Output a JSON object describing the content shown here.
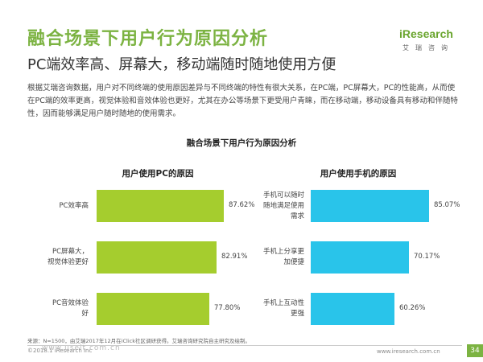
{
  "header": {
    "title": "融合场景下用户行为原因分析",
    "subtitle": "PC端效率高、屏幕大，移动端随时随地使用方便"
  },
  "logo": {
    "main": "iResearch",
    "sub": "艾瑞咨询"
  },
  "intro": "根据艾瑞咨询数据，用户对不同终端的使用原因差异与不同终端的特性有很大关系，在PC端，PC屏幕大，PC的性能高，从而使在PC端的效率更高，视觉体验和音效体验也更好，尤其在办公等场景下更受用户青睐，而在移动端，移动设备具有移动和伴随特性，因而能够满足用户随时随地的使用需求。",
  "chart_data": {
    "type": "bar",
    "title": "融合场景下用户行为原因分析",
    "orientation": "horizontal",
    "panels": [
      {
        "title": "用户使用PC的原因",
        "categories": [
          "PC效率高",
          "PC屏幕大，视觉体验更好",
          "PC音效体验好"
        ],
        "category_lines": [
          [
            "PC效率高"
          ],
          [
            "PC屏幕大，",
            "视觉体验更好"
          ],
          [
            "PC音效体验",
            "好"
          ]
        ],
        "values": [
          87.62,
          82.91,
          77.8
        ],
        "labels": [
          "87.62%",
          "82.91%",
          "77.80%"
        ],
        "color": "#a5cd2e"
      },
      {
        "title": "用户使用手机的原因",
        "categories": [
          "手机可以随时随地满足使用需求",
          "手机上分享更加便捷",
          "手机上互动性更强"
        ],
        "category_lines": [
          [
            "手机可以随时",
            "随地满足使用",
            "需求"
          ],
          [
            "手机上分享更",
            "加便捷"
          ],
          [
            "手机上互动性",
            "更强"
          ]
        ],
        "values": [
          85.07,
          70.17,
          60.26
        ],
        "labels": [
          "85.07%",
          "70.17%",
          "60.26%"
        ],
        "color": "#29c4ea"
      }
    ]
  },
  "footer": {
    "source": "来源：N=1500，由艾瑞2017年12月在iClick社区调研获得。艾瑞咨询研究院自主研究及绘制。",
    "copyright": "©2018.1 iResearch Inc",
    "website": "www.iresearch.com.cn",
    "page": "34",
    "watermark": "www.useit.com.cn"
  }
}
